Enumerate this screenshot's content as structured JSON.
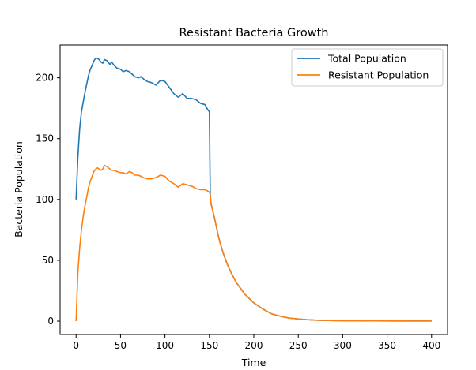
{
  "chart_data": {
    "type": "line",
    "title": "Resistant Bacteria Growth",
    "xlabel": "Time",
    "ylabel": "Bacteria Population",
    "xlim": [
      -18,
      418
    ],
    "ylim": [
      -11,
      227
    ],
    "xticks": [
      "0",
      "50",
      "100",
      "150",
      "200",
      "250",
      "300",
      "350",
      "400"
    ],
    "yticks": [
      "0",
      "50",
      "100",
      "150",
      "200"
    ],
    "grid": false,
    "legend_position": "top-right",
    "series": [
      {
        "name": "Total Population",
        "color": "#1f77b4",
        "x": [
          0,
          2,
          4,
          6,
          8,
          10,
          12,
          14,
          16,
          18,
          20,
          22,
          24,
          26,
          28,
          30,
          32,
          35,
          38,
          40,
          43,
          46,
          50,
          53,
          56,
          60,
          63,
          66,
          70,
          73,
          76,
          80,
          85,
          90,
          95,
          100,
          105,
          110,
          115,
          120,
          125,
          130,
          135,
          140,
          145,
          148,
          150,
          151,
          152,
          154,
          156,
          158,
          160,
          163,
          166,
          170,
          175,
          180,
          190,
          200,
          210,
          220,
          230,
          240,
          250,
          260,
          270,
          280,
          290,
          300,
          320,
          340,
          360,
          380,
          400
        ],
        "y": [
          100,
          135,
          158,
          172,
          180,
          188,
          195,
          202,
          207,
          210,
          214,
          216,
          216,
          215,
          213,
          212,
          215,
          214,
          211,
          213,
          210,
          208,
          207,
          205,
          206,
          205,
          203,
          201,
          200,
          201,
          199,
          197,
          196,
          194,
          198,
          197,
          192,
          187,
          184,
          187,
          183,
          183,
          182,
          179,
          178,
          174,
          172,
          101,
          96,
          90,
          84,
          77,
          70,
          62,
          55,
          47,
          39,
          32,
          22,
          15,
          10,
          6,
          4,
          2.5,
          1.8,
          1.2,
          0.8,
          0.6,
          0.5,
          0.4,
          0.3,
          0.2,
          0.15,
          0.1,
          0.1
        ]
      },
      {
        "name": "Resistant Population",
        "color": "#ff7f0e",
        "x": [
          0,
          2,
          4,
          6,
          8,
          10,
          12,
          14,
          16,
          18,
          20,
          22,
          24,
          26,
          28,
          30,
          32,
          35,
          38,
          40,
          43,
          46,
          50,
          53,
          56,
          60,
          63,
          66,
          70,
          73,
          76,
          80,
          85,
          90,
          95,
          100,
          105,
          110,
          115,
          120,
          125,
          130,
          135,
          140,
          145,
          148,
          150,
          151,
          152,
          154,
          156,
          158,
          160,
          163,
          166,
          170,
          175,
          180,
          190,
          200,
          210,
          220,
          230,
          240,
          250,
          260,
          270,
          280,
          290,
          300,
          320,
          340,
          360,
          380,
          400
        ],
        "y": [
          0,
          40,
          60,
          75,
          86,
          95,
          102,
          110,
          115,
          119,
          123,
          125,
          126,
          125,
          124,
          125,
          128,
          127,
          125,
          124,
          124,
          123,
          122,
          122,
          121,
          123,
          122,
          120,
          120,
          119,
          118,
          117,
          117,
          118,
          120,
          119,
          115,
          113,
          110,
          113,
          112,
          111,
          109,
          108,
          108,
          107,
          106,
          104,
          96,
          90,
          84,
          77,
          70,
          62,
          55,
          47,
          39,
          32,
          22,
          15,
          10,
          6,
          4,
          2.5,
          1.8,
          1.2,
          0.8,
          0.6,
          0.5,
          0.4,
          0.3,
          0.2,
          0.15,
          0.1,
          0.1
        ]
      }
    ]
  }
}
